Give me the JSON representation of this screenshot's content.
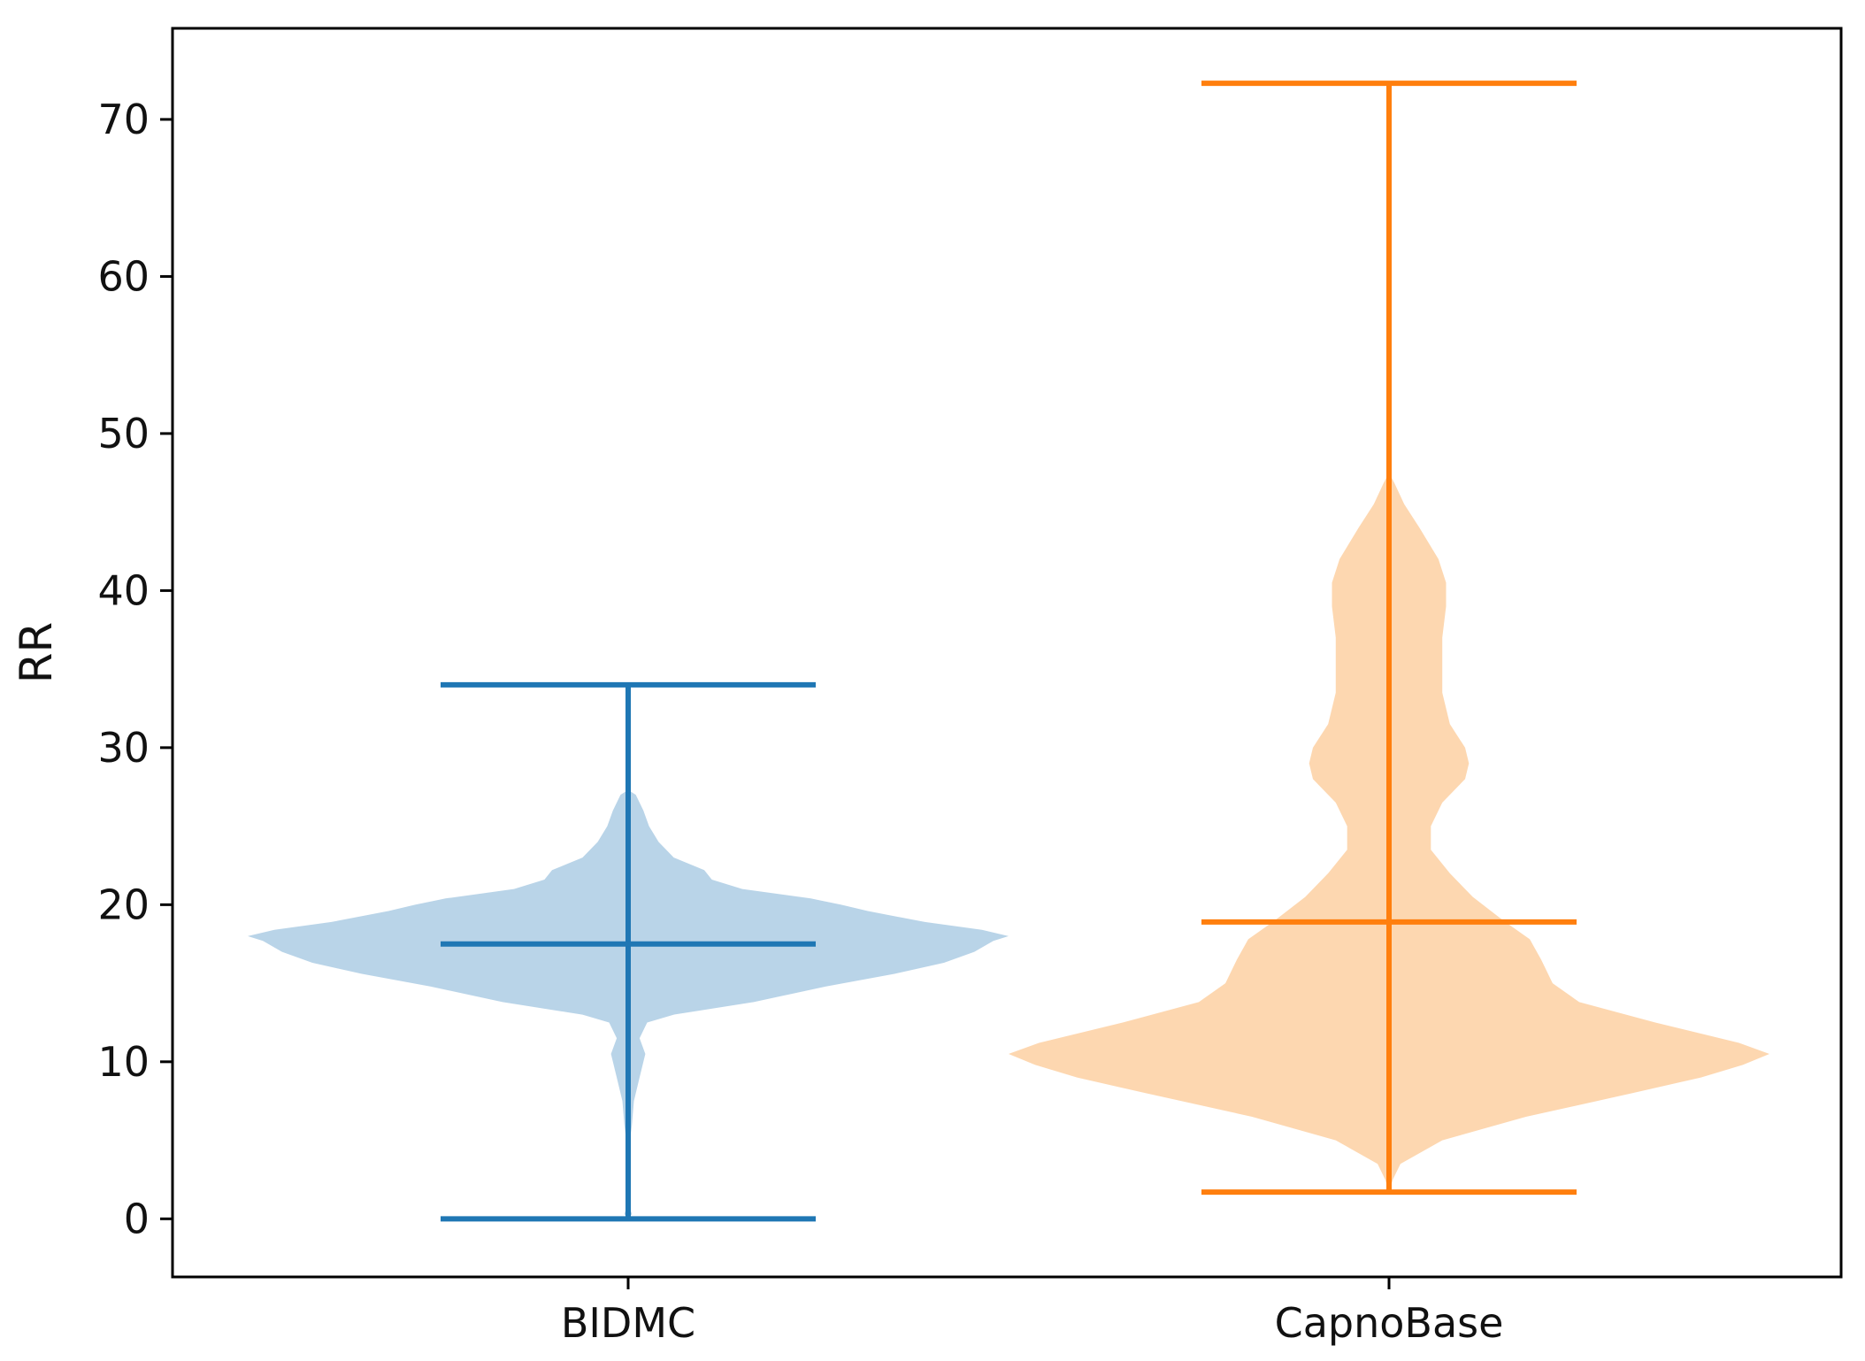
{
  "chart_data": {
    "type": "violin",
    "title": "",
    "xlabel": "",
    "ylabel": "RR",
    "ylim": [
      -3.7,
      75.8
    ],
    "yticks": [
      0,
      10,
      20,
      30,
      40,
      50,
      60,
      70
    ],
    "categories": [
      "BIDMC",
      "CapnoBase"
    ],
    "grid": false,
    "series": [
      {
        "name": "BIDMC",
        "color": "#1f77b4",
        "fill_color": "#b9d4e8",
        "min": 0.0,
        "max": 34.0,
        "median": 17.5,
        "density": [
          [
            0.0,
            0.0
          ],
          [
            0.3,
            0.01
          ],
          [
            1.0,
            0.0
          ],
          [
            4.0,
            0.0
          ],
          [
            6.0,
            0.01
          ],
          [
            7.5,
            0.015
          ],
          [
            9.0,
            0.03
          ],
          [
            10.5,
            0.045
          ],
          [
            11.5,
            0.03
          ],
          [
            12.5,
            0.05
          ],
          [
            13.0,
            0.12
          ],
          [
            13.8,
            0.33
          ],
          [
            14.8,
            0.52
          ],
          [
            15.6,
            0.7
          ],
          [
            16.3,
            0.83
          ],
          [
            17.0,
            0.91
          ],
          [
            17.7,
            0.96
          ],
          [
            18.0,
            1.0
          ],
          [
            18.4,
            0.93
          ],
          [
            18.9,
            0.78
          ],
          [
            19.6,
            0.63
          ],
          [
            20.0,
            0.56
          ],
          [
            20.4,
            0.48
          ],
          [
            21.0,
            0.3
          ],
          [
            21.6,
            0.22
          ],
          [
            22.2,
            0.2
          ],
          [
            23.0,
            0.12
          ],
          [
            24.0,
            0.08
          ],
          [
            25.0,
            0.055
          ],
          [
            26.0,
            0.04
          ],
          [
            27.0,
            0.02
          ],
          [
            27.3,
            0.0
          ]
        ]
      },
      {
        "name": "CapnoBase",
        "color": "#ff7f0e",
        "fill_color": "#fdd7b0",
        "min": 1.7,
        "max": 72.3,
        "median": 18.9,
        "density": [
          [
            1.7,
            0.0
          ],
          [
            2.5,
            0.01
          ],
          [
            3.5,
            0.03
          ],
          [
            5.0,
            0.14
          ],
          [
            6.5,
            0.36
          ],
          [
            8.0,
            0.64
          ],
          [
            9.0,
            0.82
          ],
          [
            9.8,
            0.93
          ],
          [
            10.5,
            1.0
          ],
          [
            11.2,
            0.92
          ],
          [
            12.5,
            0.7
          ],
          [
            13.8,
            0.5
          ],
          [
            15.0,
            0.43
          ],
          [
            16.5,
            0.4
          ],
          [
            17.8,
            0.37
          ],
          [
            19.0,
            0.3
          ],
          [
            20.5,
            0.22
          ],
          [
            22.0,
            0.16
          ],
          [
            23.5,
            0.11
          ],
          [
            25.0,
            0.11
          ],
          [
            26.5,
            0.14
          ],
          [
            28.0,
            0.2
          ],
          [
            29.0,
            0.21
          ],
          [
            30.0,
            0.2
          ],
          [
            31.5,
            0.16
          ],
          [
            33.5,
            0.14
          ],
          [
            35.0,
            0.14
          ],
          [
            37.0,
            0.14
          ],
          [
            39.0,
            0.15
          ],
          [
            40.5,
            0.15
          ],
          [
            42.0,
            0.13
          ],
          [
            44.0,
            0.08
          ],
          [
            45.5,
            0.04
          ],
          [
            46.8,
            0.015
          ],
          [
            47.5,
            0.0
          ]
        ]
      }
    ]
  }
}
